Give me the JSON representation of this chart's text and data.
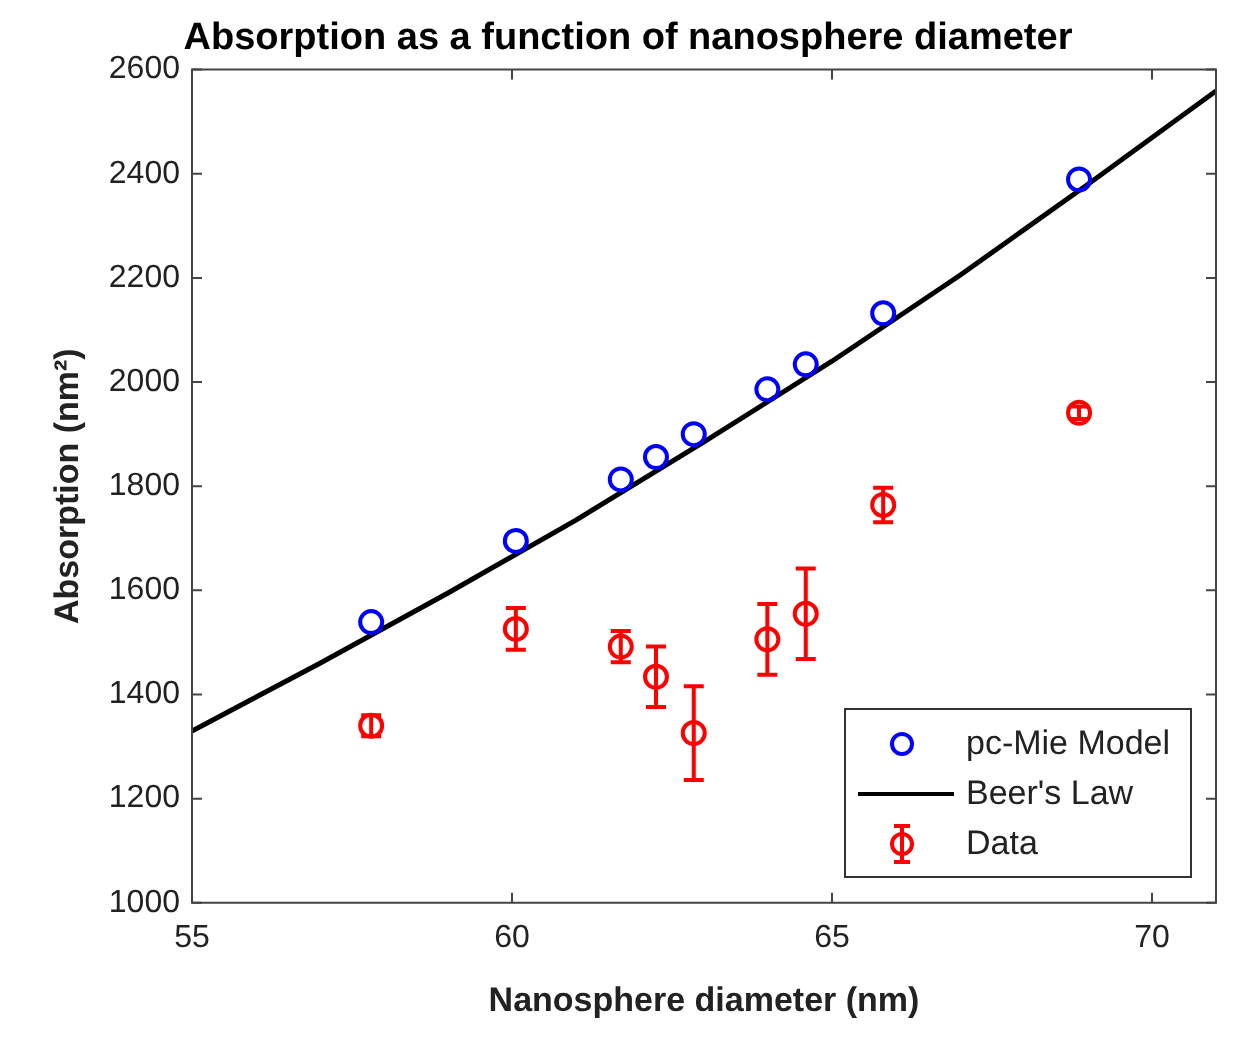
{
  "chart_data": {
    "type": "scatter",
    "title": "Absorption as a function of nanosphere diameter",
    "xlabel": "Nanosphere diameter (nm)",
    "ylabel": "Absorption (nm²)",
    "xlim": [
      55,
      71
    ],
    "xticks": [
      55,
      60,
      65,
      70
    ],
    "ylim": [
      1000,
      2600
    ],
    "yticks": [
      1000,
      1200,
      1400,
      1600,
      1800,
      2000,
      2200,
      2400,
      2600
    ],
    "grid": false,
    "legend": "bottom right",
    "series": [
      {
        "name": "pc-Mie Model",
        "type": "scatter",
        "marker": "circle",
        "color": "#0000ff",
        "x": [
          57.8,
          60.06,
          61.7,
          62.25,
          62.84,
          63.99,
          64.59,
          65.8,
          68.86
        ],
        "values": [
          1539,
          1695,
          1813,
          1856,
          1900,
          1986,
          2034,
          2132,
          2389
        ]
      },
      {
        "name": "Beer's Law",
        "type": "line",
        "marker": "none",
        "line_style": "solid",
        "color": "#000000",
        "x": [
          55,
          57,
          59,
          61,
          63,
          65,
          67,
          69,
          71
        ],
        "values": [
          1330,
          1460,
          1595,
          1735,
          1885,
          2040,
          2205,
          2380,
          2559
        ]
      },
      {
        "name": "Data",
        "type": "scatter",
        "color": "#ff0000",
        "x": [
          57.8,
          60.06,
          61.7,
          62.25,
          62.84,
          63.99,
          64.59,
          65.8,
          68.86
        ],
        "values": [
          1340,
          1526,
          1492,
          1434,
          1326,
          1506,
          1555,
          1764,
          1941
        ],
        "errors": [
          20,
          40,
          30,
          58,
          90,
          68,
          87,
          33,
          12
        ]
      }
    ]
  }
}
